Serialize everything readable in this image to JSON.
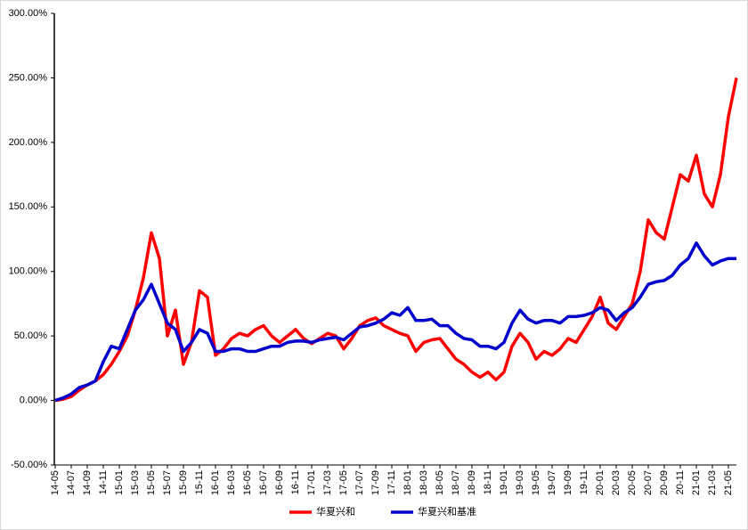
{
  "chart_data": {
    "type": "line",
    "categories": [
      "14-05",
      null,
      "14-07",
      null,
      "14-09",
      null,
      "14-11",
      null,
      "15-01",
      null,
      "15-03",
      null,
      "15-05",
      null,
      "15-07",
      null,
      "15-09",
      null,
      "15-11",
      null,
      "16-01",
      null,
      "16-03",
      null,
      "16-05",
      null,
      "16-07",
      null,
      "16-09",
      null,
      "16-11",
      null,
      "17-01",
      null,
      "17-03",
      null,
      "17-05",
      null,
      "17-07",
      null,
      "17-09",
      null,
      "17-11",
      null,
      "18-01",
      null,
      "18-03",
      null,
      "18-05",
      null,
      "18-07",
      null,
      "18-09",
      null,
      "18-11",
      null,
      "19-01",
      null,
      "19-03",
      null,
      "19-05",
      null,
      "19-07",
      null,
      "19-09",
      null,
      "19-11",
      null,
      "20-01",
      null,
      "20-03",
      null,
      "20-05",
      null,
      "20-07",
      null,
      "20-09",
      null,
      "20-11",
      null,
      "21-01",
      null,
      "21-03",
      null,
      "21-05",
      null
    ],
    "series": [
      {
        "name": "华夏兴和",
        "color": "#ff0000",
        "values": [
          0,
          1,
          3,
          8,
          12,
          15,
          20,
          28,
          38,
          50,
          70,
          95,
          130,
          110,
          50,
          70,
          28,
          45,
          85,
          80,
          35,
          40,
          48,
          52,
          50,
          55,
          58,
          50,
          45,
          50,
          55,
          48,
          44,
          48,
          52,
          50,
          40,
          48,
          58,
          62,
          64,
          58,
          55,
          52,
          50,
          38,
          45,
          47,
          48,
          40,
          32,
          28,
          22,
          18,
          22,
          16,
          22,
          42,
          52,
          45,
          32,
          38,
          35,
          40,
          48,
          45,
          55,
          65,
          80,
          60,
          55,
          65,
          75,
          100,
          140,
          130,
          125,
          150,
          175,
          170,
          190,
          160,
          150,
          175,
          220,
          250
        ]
      },
      {
        "name": "华夏兴和基准",
        "color": "#0000cc",
        "values": [
          0,
          2,
          5,
          10,
          12,
          15,
          30,
          42,
          40,
          55,
          70,
          78,
          90,
          75,
          60,
          55,
          38,
          45,
          55,
          52,
          38,
          38,
          40,
          40,
          38,
          38,
          40,
          42,
          42,
          45,
          46,
          46,
          45,
          47,
          48,
          49,
          47,
          52,
          57,
          58,
          60,
          63,
          68,
          66,
          72,
          62,
          62,
          63,
          58,
          58,
          52,
          48,
          47,
          42,
          42,
          40,
          45,
          60,
          70,
          63,
          60,
          62,
          62,
          60,
          65,
          65,
          66,
          68,
          72,
          70,
          62,
          68,
          72,
          80,
          90,
          92,
          93,
          97,
          105,
          110,
          122,
          112,
          105,
          108,
          110,
          110
        ]
      }
    ],
    "ylim": [
      -50,
      300
    ],
    "yticks": [
      {
        "value": -50,
        "label": "-50.00%"
      },
      {
        "value": 0,
        "label": "0.00%"
      },
      {
        "value": 50,
        "label": "50.00%"
      },
      {
        "value": 100,
        "label": "100.00%"
      },
      {
        "value": 150,
        "label": "150.00%"
      },
      {
        "value": 200,
        "label": "200.00%"
      },
      {
        "value": 250,
        "label": "250.00%"
      },
      {
        "value": 300,
        "label": "300.00%"
      }
    ],
    "legend": "bottom"
  }
}
